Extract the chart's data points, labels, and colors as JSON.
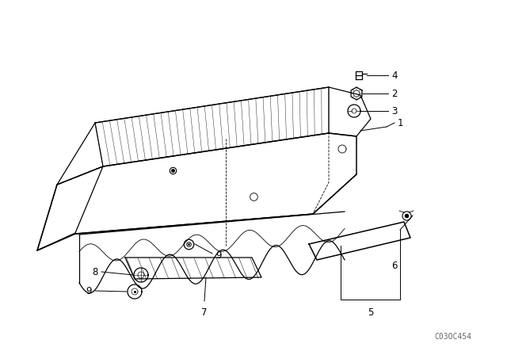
{
  "background_color": "#ffffff",
  "figure_width": 6.4,
  "figure_height": 4.48,
  "dpi": 100,
  "watermark": "C03OC454",
  "line_color": "#000000",
  "label_fontsize": 8.5
}
